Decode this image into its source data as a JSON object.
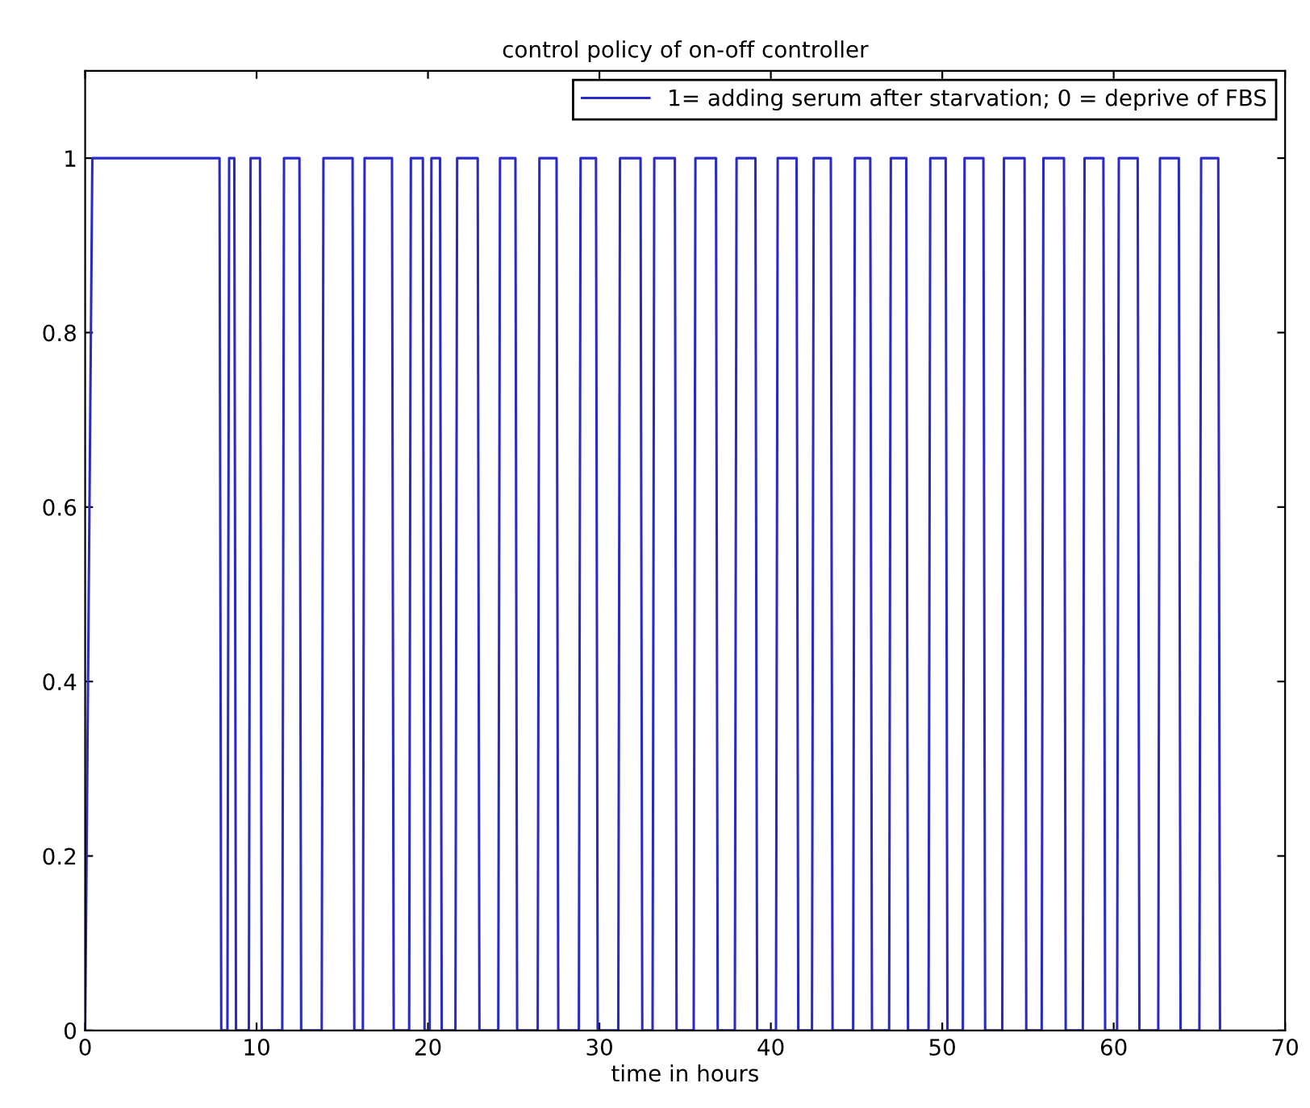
{
  "chart_data": {
    "type": "line",
    "title": "control policy of on-off controller",
    "xlabel": "time in hours",
    "x": [
      0,
      0.42,
      7.84,
      7.94,
      8.3,
      8.4,
      8.7,
      8.8,
      9.55,
      9.65,
      10.2,
      10.3,
      11.5,
      11.6,
      12.5,
      12.6,
      13.8,
      13.9,
      15.6,
      15.7,
      16.2,
      16.3,
      17.9,
      18.0,
      18.9,
      19.0,
      19.7,
      19.8,
      20.1,
      20.2,
      20.7,
      20.8,
      21.6,
      21.7,
      22.9,
      23.0,
      24.1,
      24.2,
      25.1,
      25.2,
      26.4,
      26.5,
      27.5,
      27.6,
      28.8,
      28.9,
      29.8,
      29.9,
      31.1,
      31.2,
      32.4,
      32.5,
      33.1,
      33.2,
      34.4,
      34.5,
      35.5,
      35.6,
      36.8,
      36.9,
      37.9,
      38.0,
      39.1,
      39.2,
      40.3,
      40.4,
      41.5,
      41.6,
      42.4,
      42.5,
      43.5,
      43.6,
      44.8,
      44.9,
      45.8,
      45.9,
      46.9,
      47.0,
      47.9,
      48.0,
      49.2,
      49.3,
      50.2,
      50.3,
      51.2,
      51.3,
      52.4,
      52.5,
      53.5,
      53.6,
      54.8,
      54.9,
      55.8,
      55.9,
      57.1,
      57.2,
      58.2,
      58.3,
      59.4,
      59.5,
      60.2,
      60.3,
      61.4,
      61.5,
      62.6,
      62.7,
      63.8,
      63.9,
      65.0,
      65.1,
      66.1,
      66.2
    ],
    "series": [
      {
        "name": "1= adding serum after starvation; 0 = deprive of FBS",
        "color": "#2a2ac8",
        "values": [
          0,
          1,
          1,
          0,
          0,
          1,
          1,
          0,
          0,
          1,
          1,
          0,
          0,
          1,
          1,
          0,
          0,
          1,
          1,
          0,
          0,
          1,
          1,
          0,
          0,
          1,
          1,
          0,
          0,
          1,
          1,
          0,
          0,
          1,
          1,
          0,
          0,
          1,
          1,
          0,
          0,
          1,
          1,
          0,
          0,
          1,
          1,
          0,
          0,
          1,
          1,
          0,
          0,
          1,
          1,
          0,
          0,
          1,
          1,
          0,
          0,
          1,
          1,
          0,
          0,
          1,
          1,
          0,
          0,
          1,
          1,
          0,
          0,
          1,
          1,
          0,
          0,
          1,
          1,
          0,
          0,
          1,
          1,
          0,
          0,
          1,
          1,
          0,
          0,
          1,
          1,
          0,
          0,
          1,
          1,
          0,
          0,
          1,
          1,
          0,
          0,
          1,
          1,
          0,
          0,
          1,
          1,
          0,
          0,
          1,
          1,
          0
        ]
      }
    ],
    "xlim": [
      0,
      70
    ],
    "xticks": [
      0,
      10,
      20,
      30,
      40,
      50,
      60,
      70
    ],
    "ylim": [
      0,
      1.1
    ],
    "yticks": [
      0,
      0.2,
      0.4,
      0.6,
      0.8,
      1
    ],
    "grid": false,
    "legend": "top right",
    "marker": "none",
    "line_style": "solid"
  }
}
